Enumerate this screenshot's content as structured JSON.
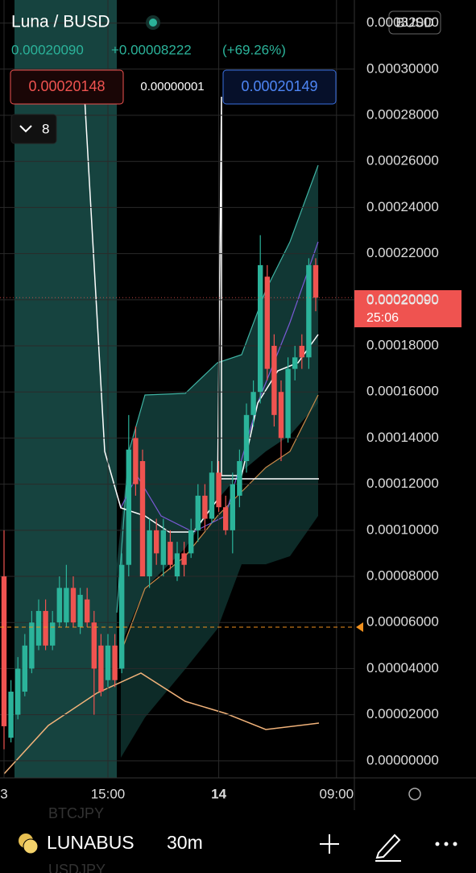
{
  "header": {
    "pair": "Luna / BUSD",
    "currency": "BUSD",
    "last": "0.00020090",
    "change": "+0.00008222",
    "change_pct": "(+69.26%)",
    "bid": "0.00020148",
    "spread": "0.00000001",
    "ask": "0.00020149",
    "indicators_count": "8"
  },
  "price_tag": {
    "price": "0.00020090",
    "countdown": "25:06"
  },
  "footer": {
    "symbol": "LUNABUS",
    "interval": "30m",
    "ghost_top": "BTCJPY",
    "ghost_bottom": "USDJPY"
  },
  "chart_data": {
    "type": "candlestick",
    "categories": [
      "3",
      null,
      null,
      null,
      null,
      null,
      null,
      null,
      null,
      null,
      null,
      null,
      null,
      null,
      null,
      "15:00",
      null,
      null,
      null,
      null,
      null,
      null,
      null,
      null,
      null,
      null,
      null,
      null,
      null,
      null,
      null,
      "14",
      null,
      null,
      null,
      null,
      null,
      null,
      null,
      null,
      null,
      null,
      null,
      null,
      null,
      null,
      null,
      null,
      "09:00"
    ],
    "open": [
      8e-05,
      1e-05,
      2e-05,
      3e-05,
      4e-05,
      5e-05,
      6.5e-05,
      5e-05,
      6e-05,
      6e-05,
      7.5e-05,
      5.8e-05,
      7e-05,
      6e-05,
      5e-05,
      3.5e-05,
      5e-05,
      4e-05,
      8.5e-05,
      0.00014,
      0.00013,
      8e-05,
      0.0001,
      8.5e-05,
      9.5e-05,
      8e-05,
      9e-05,
      9e-05,
      0.0001,
      0.000115,
      0.000105,
      0.000125,
      0.00011,
      0.0001,
      0.000115,
      0.00013,
      0.00015,
      0.00016,
      0.00021,
      0.00018,
      0.00016,
      0.00014,
      0.00017,
      0.00018,
      0.000175,
      0.000215,
      null,
      null,
      null
    ],
    "high": [
      0.0001,
      3.5e-05,
      4.5e-05,
      5.5e-05,
      6.5e-05,
      7e-05,
      7e-05,
      6.5e-05,
      8e-05,
      8.5e-05,
      8e-05,
      7.5e-05,
      7.5e-05,
      6.5e-05,
      5.5e-05,
      5.5e-05,
      5.5e-05,
      9e-05,
      0.00015,
      0.000145,
      0.000135,
      0.000105,
      0.000105,
      0.000105,
      0.0001,
      9.5e-05,
      9.5e-05,
      0.000105,
      0.00012,
      0.00012,
      0.00013,
      0.00013,
      0.000115,
      0.000125,
      0.000135,
      0.000155,
      0.000165,
      0.000228,
      0.000215,
      0.000185,
      0.000165,
      0.000175,
      0.00018,
      0.000185,
      0.000218,
      0.000218,
      null,
      null,
      null
    ],
    "low": [
      5e-06,
      8e-06,
      1.8e-05,
      2.8e-05,
      3.8e-05,
      4.8e-05,
      4.8e-05,
      4.8e-05,
      5.8e-05,
      5.8e-05,
      5.8e-05,
      5.5e-05,
      5.8e-05,
      2e-05,
      2.8e-05,
      3.2e-05,
      3.2e-05,
      3.8e-05,
      8e-05,
      0.000115,
      8e-05,
      7.5e-05,
      8.5e-05,
      8e-05,
      8.3e-05,
      7.8e-05,
      8e-05,
      8.8e-05,
      9.5e-05,
      0.0001,
      0.000103,
      0.000108,
      9.8e-05,
      9e-05,
      0.00011,
      0.000125,
      0.000145,
      0.000155,
      0.000165,
      0.000145,
      0.00013,
      0.000138,
      0.000165,
      0.00017,
      0.00017,
      0.000195,
      null,
      null,
      null
    ],
    "close": [
      1.5e-05,
      3e-05,
      4e-05,
      5e-05,
      6e-05,
      6.5e-05,
      5e-05,
      6e-05,
      7.5e-05,
      7.5e-05,
      6e-05,
      7.2e-05,
      6e-05,
      4e-05,
      3e-05,
      5e-05,
      3.5e-05,
      8.5e-05,
      0.000135,
      0.00012,
      8e-05,
      0.0001,
      9e-05,
      0.0001,
      8.5e-05,
      9e-05,
      8.5e-05,
      0.0001,
      0.000115,
      0.000105,
      0.000125,
      0.00011,
      0.0001,
      0.00012,
      0.00013,
      0.00015,
      0.00016,
      0.000215,
      0.00017,
      0.00015,
      0.00014,
      0.00017,
      0.000175,
      0.000175,
      0.000215,
      0.0002009,
      null,
      null,
      null
    ],
    "up_color": "#2bb39a",
    "down_color": "#ef5350",
    "reference_line": 5.8e-05,
    "ylim": [
      -7.4e-06,
      0.00033
    ],
    "yticks": [
      {
        "value": 0,
        "label": "0.00000000"
      },
      {
        "value": 2e-05,
        "label": "0.00002000"
      },
      {
        "value": 4e-05,
        "label": "0.00004000"
      },
      {
        "value": 6e-05,
        "label": "0.00006000"
      },
      {
        "value": 8e-05,
        "label": "0.00008000"
      },
      {
        "value": 0.0001,
        "label": "0.00010000"
      },
      {
        "value": 0.00012,
        "label": "0.00012000"
      },
      {
        "value": 0.00014,
        "label": "0.00014000"
      },
      {
        "value": 0.00016,
        "label": "0.00016000"
      },
      {
        "value": 0.00018,
        "label": "0.00018000"
      },
      {
        "value": 0.0002,
        "label": "0.00020000"
      },
      {
        "value": 0.00022,
        "label": "0.00022000"
      },
      {
        "value": 0.00024,
        "label": "0.00024000"
      },
      {
        "value": 0.00026,
        "label": "0.00026000"
      },
      {
        "value": 0.00028,
        "label": "0.00028000"
      },
      {
        "value": 0.0003,
        "label": "0.00030000"
      },
      {
        "value": 0.00032,
        "label": "0.00032000"
      }
    ],
    "grid": true
  }
}
